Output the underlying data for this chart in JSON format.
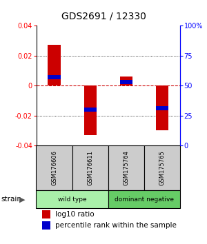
{
  "title": "GDS2691 / 12330",
  "samples": [
    "GSM176606",
    "GSM176611",
    "GSM175764",
    "GSM175765"
  ],
  "log10_ratio": [
    0.027,
    -0.033,
    0.006,
    -0.03
  ],
  "percentile_rank": [
    0.57,
    0.3,
    0.53,
    0.31
  ],
  "ylim": [
    -0.04,
    0.04
  ],
  "yticks_left": [
    -0.04,
    -0.02,
    0.0,
    0.02,
    0.04
  ],
  "groups": [
    {
      "label": "wild type",
      "samples": [
        0,
        1
      ],
      "color": "#aaf0aa"
    },
    {
      "label": "dominant negative",
      "samples": [
        2,
        3
      ],
      "color": "#66cc66"
    }
  ],
  "bar_color": "#cc0000",
  "pct_color": "#0000cc",
  "pct_bar_height": 0.003,
  "zero_line_color": "#cc0000",
  "background_color": "#ffffff",
  "title_fontsize": 10,
  "tick_fontsize": 7,
  "legend_fontsize": 7.5,
  "bar_width": 0.35
}
